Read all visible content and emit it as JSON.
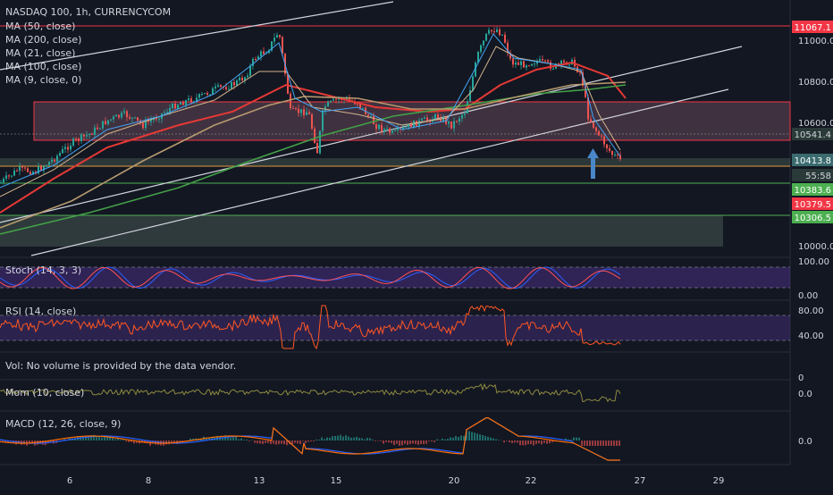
{
  "header": {
    "title": "NASDAQ 100, 1h, CURRENCYCOM"
  },
  "indicators": [
    "MA (50, close)",
    "MA (200, close)",
    "MA (21, close)",
    "MA (100, close)",
    "MA (9, close, 0)"
  ],
  "colors": {
    "background": "#131722",
    "up": "#26a69a",
    "down": "#ef5350",
    "ma50": "#e53935",
    "ma200": "#43a047",
    "ma21": "#d2b48c",
    "ma100": "#b79a6e",
    "ma9": "#42a5f5",
    "stoch_k": "#2962ff",
    "stoch_d": "#ff5252",
    "rsi": "#ff5722",
    "mom": "#8d8a3f",
    "macd": "#2962ff",
    "signal": "#ff6d00",
    "accent_red": "#f23645",
    "accent_green": "#4caf50",
    "arrow": "#4a87c8"
  },
  "chart_data": {
    "type": "line",
    "price_axis": [
      "11000.0",
      "10800.0",
      "10600.0",
      "10000.0"
    ],
    "price_tags": [
      {
        "label": "11067.1",
        "kind": "red"
      },
      {
        "label": "10541.4",
        "kind": "light"
      },
      {
        "label": "10413.8",
        "kind": "blue"
      },
      {
        "label": "55:58",
        "kind": "countdown"
      },
      {
        "label": "10383.6",
        "kind": "green"
      },
      {
        "label": "10379.5",
        "kind": "red"
      },
      {
        "label": "10306.5",
        "kind": "green"
      }
    ],
    "x_labels": [
      "6",
      "8",
      "13",
      "15",
      "20",
      "22",
      "27",
      "29"
    ],
    "panels": [
      {
        "label": "Stoch (14, 3, 3)",
        "ticks": [
          "100.00",
          "0.00"
        ]
      },
      {
        "label": "RSI (14, close)",
        "ticks": [
          "80.00",
          "40.00"
        ]
      },
      {
        "label": "Vol: No volume is provided by the data vendor.",
        "ticks": [
          "0"
        ]
      },
      {
        "label": "Mom (10, close)",
        "ticks": [
          "0.0"
        ]
      },
      {
        "label": "MACD (12, 26, close, 9)",
        "ticks": [
          "0.0"
        ]
      }
    ]
  }
}
